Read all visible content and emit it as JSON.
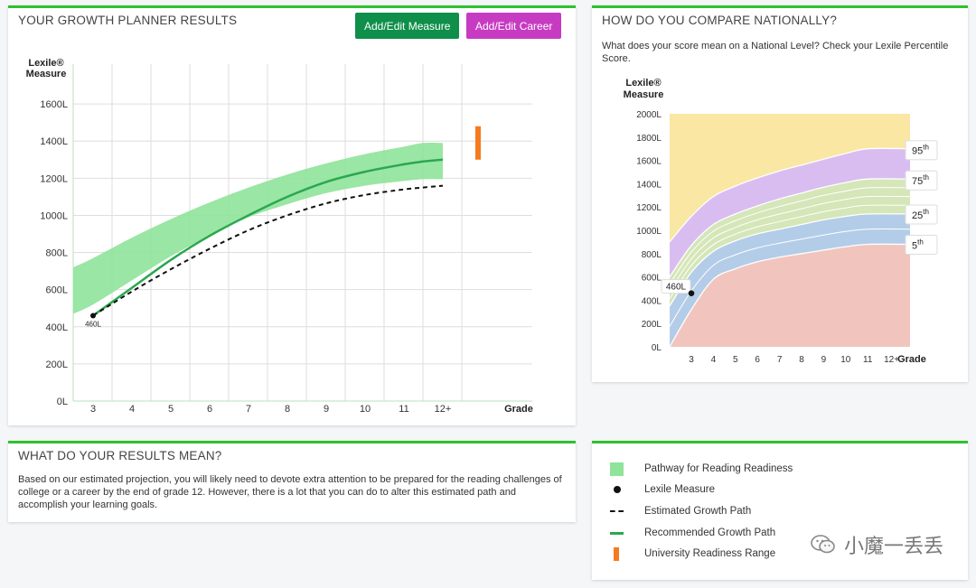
{
  "planner": {
    "title": "YOUR GROWTH PLANNER RESULTS",
    "btn_measure": "Add/Edit Measure",
    "btn_career": "Add/Edit Career",
    "ylabel": [
      "Lexile®",
      "Measure"
    ],
    "xlabel": "Grade",
    "point_label": "460L"
  },
  "national": {
    "title": "HOW DO YOU COMPARE NATIONALLY?",
    "desc": "What does your score mean on a National Level? Check your Lexile Percentile Score.",
    "ylabel": [
      "Lexile®",
      "Measure"
    ],
    "xlabel": "Grade",
    "point_label": "460L",
    "percentile_labels": [
      {
        "num": "95",
        "suf": "th"
      },
      {
        "num": "75",
        "suf": "th"
      },
      {
        "num": "25",
        "suf": "th"
      },
      {
        "num": "5",
        "suf": "th"
      }
    ]
  },
  "meaning": {
    "title": "WHAT DO YOUR RESULTS MEAN?",
    "text": "Based on our estimated projection, you will likely need to devote extra attention to be prepared for the reading challenges of college or a career by the end of grade 12. However, there is a lot that you can do to alter this estimated path and accomplish your learning goals."
  },
  "legend": [
    {
      "label": "Pathway for Reading Readiness",
      "icon": "green-band-swatch"
    },
    {
      "label": "Lexile Measure",
      "icon": "black-dot-icon"
    },
    {
      "label": "Estimated Growth Path",
      "icon": "dashed-line-icon"
    },
    {
      "label": "Recommended Growth Path",
      "icon": "green-line-icon"
    },
    {
      "label": "University Readiness Range",
      "icon": "orange-bar-icon"
    }
  ],
  "watermark": "小魔一丢丢",
  "colors": {
    "accent_green": "#2ec12e",
    "btn_green": "#0f8f4a",
    "btn_magenta": "#c73bc2",
    "band_green": "#8fe39a",
    "line_green": "#2aa84f",
    "orange": "#f47b20"
  },
  "chart_data": [
    {
      "type": "line",
      "title": "YOUR GROWTH PLANNER RESULTS",
      "xlabel": "Grade",
      "ylabel": "Lexile® Measure",
      "categories": [
        "3",
        "4",
        "5",
        "6",
        "7",
        "8",
        "9",
        "10",
        "11",
        "12+"
      ],
      "ylim": [
        0,
        1800
      ],
      "yticks": [
        0,
        200,
        400,
        600,
        800,
        1000,
        1200,
        1400,
        1600
      ],
      "ytick_labels": [
        "0L",
        "200L",
        "400L",
        "600L",
        "800L",
        "1000L",
        "1200L",
        "1400L",
        "1600L"
      ],
      "grid": true,
      "band": {
        "name": "Pathway for Reading Readiness",
        "x": [
          2.5,
          3,
          4,
          5,
          6,
          7,
          8,
          9,
          10,
          11,
          11.5,
          12
        ],
        "upper": [
          720,
          770,
          880,
          980,
          1070,
          1150,
          1220,
          1280,
          1330,
          1370,
          1390,
          1390
        ],
        "lower": [
          470,
          520,
          650,
          780,
          890,
          990,
          1060,
          1120,
          1160,
          1185,
          1195,
          1195
        ]
      },
      "series": [
        {
          "name": "Recommended Growth Path",
          "x": [
            3,
            4,
            5,
            6,
            7,
            8,
            9,
            10,
            11,
            11.5,
            12
          ],
          "values": [
            460,
            610,
            760,
            890,
            1000,
            1100,
            1180,
            1235,
            1275,
            1290,
            1300
          ]
        },
        {
          "name": "Estimated Growth Path",
          "x": [
            3,
            4,
            5,
            6,
            7,
            8,
            9,
            10,
            11,
            11.5,
            12
          ],
          "values": [
            460,
            590,
            710,
            820,
            920,
            1000,
            1065,
            1110,
            1140,
            1150,
            1160
          ]
        }
      ],
      "point": {
        "x": 3,
        "y": 460,
        "label": "460L"
      },
      "readiness_range": [
        1300,
        1480
      ]
    },
    {
      "type": "area",
      "title": "HOW DO YOU COMPARE NATIONALLY?",
      "xlabel": "Grade",
      "ylabel": "Lexile® Measure",
      "categories": [
        "3",
        "4",
        "5",
        "6",
        "7",
        "8",
        "9",
        "10",
        "11",
        "12+"
      ],
      "ylim": [
        0,
        2000
      ],
      "yticks": [
        0,
        200,
        400,
        600,
        800,
        1000,
        1200,
        1400,
        1600,
        1800,
        2000
      ],
      "ytick_labels": [
        "0L",
        "200L",
        "400L",
        "600L",
        "800L",
        "1000L",
        "1200L",
        "1400L",
        "1600L",
        "1800L",
        "2000L"
      ],
      "x": [
        2.1,
        3,
        4,
        5,
        6,
        7,
        8,
        9,
        10,
        11,
        12
      ],
      "percentiles": {
        "p5": [
          0,
          320,
          580,
          670,
          730,
          770,
          800,
          830,
          860,
          880,
          880
        ],
        "p25": [
          350,
          640,
          820,
          910,
          970,
          1010,
          1050,
          1090,
          1120,
          1140,
          1140
        ],
        "p75": [
          600,
          870,
          1050,
          1140,
          1210,
          1270,
          1320,
          1370,
          1410,
          1440,
          1440
        ],
        "p95": [
          900,
          1120,
          1290,
          1380,
          1450,
          1510,
          1560,
          1610,
          1660,
          1700,
          1700
        ],
        "top": 2000
      },
      "point": {
        "x": 3,
        "y": 460,
        "label": "460L"
      },
      "percentile_labels": [
        "95th",
        "75th",
        "25th",
        "5th"
      ]
    }
  ]
}
